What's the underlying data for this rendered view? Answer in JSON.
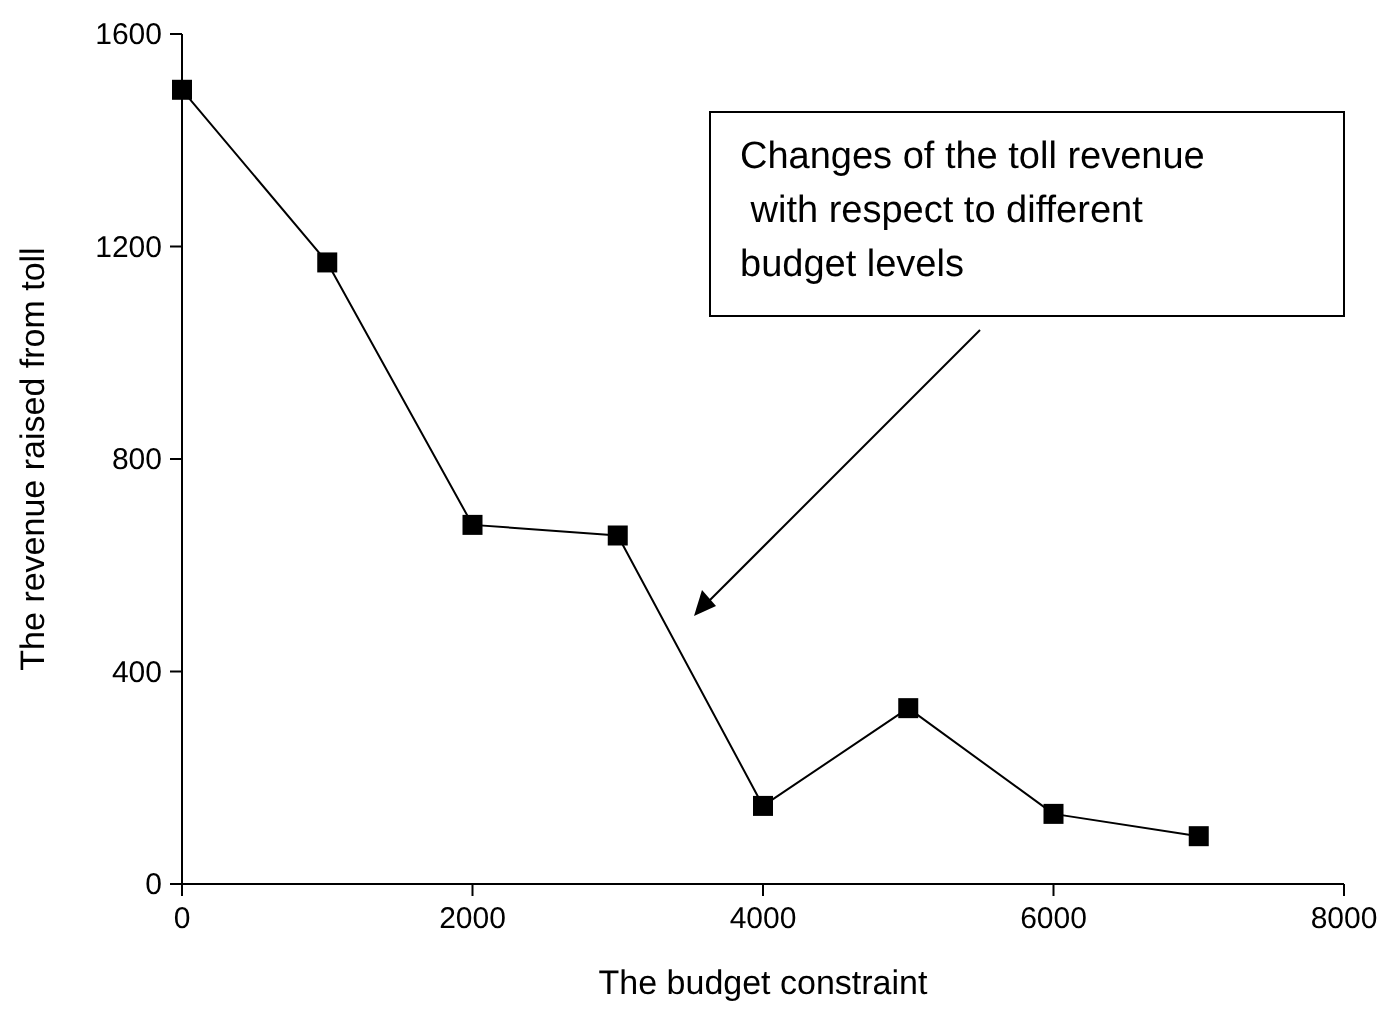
{
  "chart_data": {
    "type": "line",
    "xlabel": "The budget constraint",
    "ylabel": "The revenue raised from toll",
    "x": [
      0,
      1000,
      2000,
      3000,
      4000,
      5000,
      6000,
      7000
    ],
    "series": [
      {
        "color": "#000000",
        "values": [
          1495,
          1170,
          676,
          656,
          147,
          331,
          132,
          90
        ]
      }
    ],
    "xlim": [
      0,
      8000
    ],
    "xticks": [
      0,
      2000,
      4000,
      6000,
      8000
    ],
    "ylim": [
      0,
      1600
    ],
    "yticks": [
      0,
      400,
      800,
      1200,
      1600
    ],
    "grid": false,
    "marker": "square",
    "line_style": "solid",
    "annotations": [
      "Changes of the toll revenue\n with respect to different\nbudget levels"
    ]
  }
}
